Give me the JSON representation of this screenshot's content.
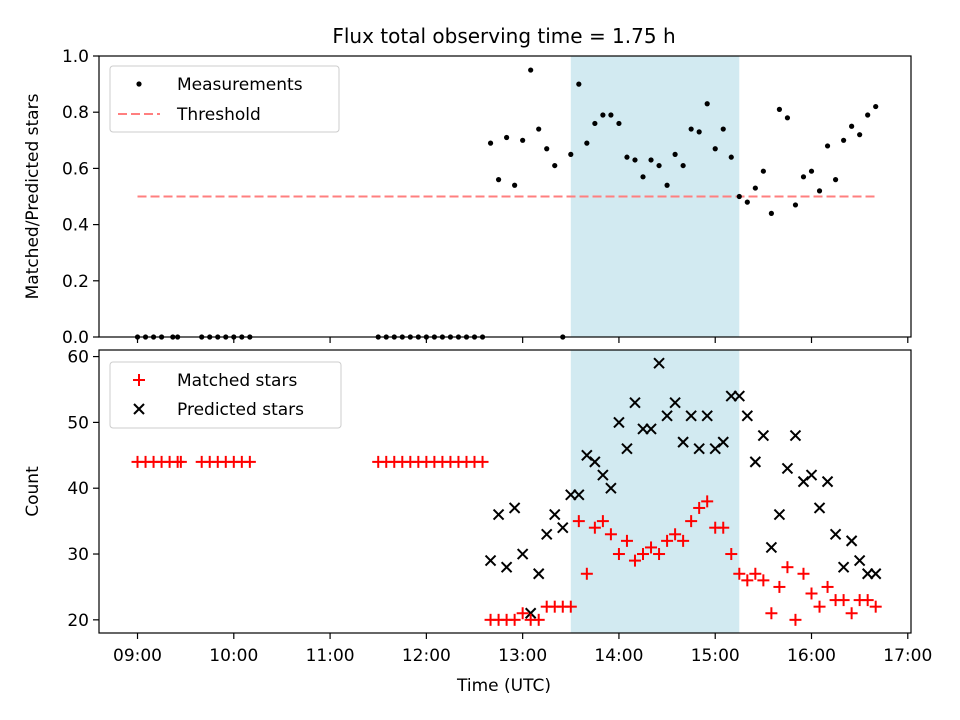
{
  "title": "Flux total observing time = 1.75 h",
  "colors": {
    "shade": "#add8e6",
    "threshold": "#ff7f7f",
    "matched": "#ff0000",
    "predicted": "#000000",
    "measurement": "#000000"
  },
  "chart_data": [
    {
      "type": "scatter",
      "ylabel": "Matched/Predicted stars",
      "xlim": [
        "08:36",
        "17:02"
      ],
      "ylim": [
        0,
        1
      ],
      "yticks": [
        "0.0",
        "0.2",
        "0.4",
        "0.6",
        "0.8",
        "1.0"
      ],
      "legend_position": "top-left",
      "shaded_interval": [
        "13:30",
        "15:15"
      ],
      "threshold": {
        "name": "Threshold",
        "value": 0.5,
        "x": [
          "09:00",
          "16:40"
        ]
      },
      "series": [
        {
          "name": "Measurements",
          "x": [
            "09:00",
            "09:05",
            "09:10",
            "09:15",
            "09:22",
            "09:25",
            "09:40",
            "09:45",
            "09:50",
            "09:55",
            "10:00",
            "10:05",
            "10:10",
            "11:30",
            "11:35",
            "11:40",
            "11:45",
            "11:50",
            "11:55",
            "12:00",
            "12:05",
            "12:10",
            "12:15",
            "12:20",
            "12:25",
            "12:30",
            "12:35",
            "12:40",
            "12:45",
            "12:50",
            "12:55",
            "13:00",
            "13:05",
            "13:10",
            "13:15",
            "13:20",
            "13:25",
            "13:30",
            "13:35",
            "13:40",
            "13:45",
            "13:50",
            "13:55",
            "14:00",
            "14:05",
            "14:10",
            "14:15",
            "14:20",
            "14:25",
            "14:30",
            "14:35",
            "14:40",
            "14:45",
            "14:50",
            "14:55",
            "15:00",
            "15:05",
            "15:10",
            "15:15",
            "15:20",
            "15:25",
            "15:30",
            "15:35",
            "15:40",
            "15:45",
            "15:50",
            "15:55",
            "16:00",
            "16:05",
            "16:10",
            "16:15",
            "16:20",
            "16:25",
            "16:30",
            "16:35",
            "16:40"
          ],
          "y": [
            0,
            0,
            0,
            0,
            0,
            0,
            0,
            0,
            0,
            0,
            0,
            0,
            0,
            0,
            0,
            0,
            0,
            0,
            0,
            0,
            0,
            0,
            0,
            0,
            0,
            0,
            0,
            0.69,
            0.56,
            0.71,
            0.54,
            0.7,
            0.95,
            0.74,
            0.67,
            0.61,
            0,
            0.65,
            0.9,
            0.69,
            0.76,
            0.79,
            0.79,
            0.76,
            0.64,
            0.63,
            0.57,
            0.63,
            0.61,
            0.54,
            0.65,
            0.61,
            0.74,
            0.73,
            0.83,
            0.67,
            0.74,
            0.64,
            0.5,
            0.48,
            0.53,
            0.59,
            0.44,
            0.81,
            0.78,
            0.47,
            0.57,
            0.59,
            0.52,
            0.68,
            0.56,
            0.7,
            0.75,
            0.72,
            0.79,
            0.82
          ]
        }
      ]
    },
    {
      "type": "scatter",
      "xlabel": "Time (UTC)",
      "ylabel": "Count",
      "xlim": [
        "08:36",
        "17:02"
      ],
      "ylim": [
        18,
        61
      ],
      "yticks": [
        "20",
        "30",
        "40",
        "50",
        "60"
      ],
      "xticks": [
        "09:00",
        "10:00",
        "11:00",
        "12:00",
        "13:00",
        "14:00",
        "15:00",
        "16:00",
        "17:00"
      ],
      "legend_position": "top-left",
      "shaded_interval": [
        "13:30",
        "15:15"
      ],
      "series": [
        {
          "name": "Matched stars",
          "marker": "+",
          "x": [
            "09:00",
            "09:05",
            "09:10",
            "09:15",
            "09:20",
            "09:25",
            "09:27",
            "09:40",
            "09:45",
            "09:50",
            "09:55",
            "10:00",
            "10:05",
            "10:10",
            "11:30",
            "11:35",
            "11:40",
            "11:45",
            "11:50",
            "11:55",
            "12:00",
            "12:05",
            "12:10",
            "12:15",
            "12:20",
            "12:25",
            "12:30",
            "12:35",
            "12:40",
            "12:45",
            "12:50",
            "12:55",
            "13:00",
            "13:05",
            "13:10",
            "13:15",
            "13:20",
            "13:25",
            "13:30",
            "13:35",
            "13:40",
            "13:45",
            "13:50",
            "13:55",
            "14:00",
            "14:05",
            "14:10",
            "14:15",
            "14:20",
            "14:25",
            "14:30",
            "14:35",
            "14:40",
            "14:45",
            "14:50",
            "14:55",
            "15:00",
            "15:05",
            "15:10",
            "15:15",
            "15:20",
            "15:25",
            "15:30",
            "15:35",
            "15:40",
            "15:45",
            "15:50",
            "15:55",
            "16:00",
            "16:05",
            "16:10",
            "16:15",
            "16:20",
            "16:25",
            "16:30",
            "16:35",
            "16:40"
          ],
          "y": [
            44,
            44,
            44,
            44,
            44,
            44,
            44,
            44,
            44,
            44,
            44,
            44,
            44,
            44,
            44,
            44,
            44,
            44,
            44,
            44,
            44,
            44,
            44,
            44,
            44,
            44,
            44,
            44,
            20,
            20,
            20,
            20,
            21,
            20,
            20,
            22,
            22,
            22,
            22,
            35,
            27,
            34,
            35,
            33,
            30,
            32,
            29,
            30,
            31,
            30,
            32,
            33,
            32,
            35,
            37,
            38,
            34,
            34,
            30,
            27,
            26,
            27,
            26,
            21,
            25,
            28,
            20,
            27,
            24,
            22,
            25,
            23,
            23,
            21,
            23,
            23,
            22
          ]
        },
        {
          "name": "Predicted stars",
          "marker": "x",
          "x": [
            "12:40",
            "12:45",
            "12:50",
            "12:55",
            "13:00",
            "13:05",
            "13:10",
            "13:15",
            "13:20",
            "13:25",
            "13:30",
            "13:35",
            "13:40",
            "13:45",
            "13:50",
            "13:55",
            "14:00",
            "14:05",
            "14:10",
            "14:15",
            "14:20",
            "14:25",
            "14:30",
            "14:35",
            "14:40",
            "14:45",
            "14:50",
            "14:55",
            "15:00",
            "15:05",
            "15:10",
            "15:15",
            "15:20",
            "15:25",
            "15:30",
            "15:35",
            "15:40",
            "15:45",
            "15:50",
            "15:55",
            "16:00",
            "16:05",
            "16:10",
            "16:15",
            "16:20",
            "16:25",
            "16:30",
            "16:35",
            "16:40"
          ],
          "y": [
            29,
            36,
            28,
            37,
            30,
            21,
            27,
            33,
            36,
            34,
            39,
            39,
            45,
            44,
            42,
            40,
            50,
            46,
            53,
            49,
            49,
            59,
            51,
            53,
            47,
            51,
            46,
            51,
            46,
            47,
            54,
            54,
            51,
            44,
            48,
            31,
            36,
            43,
            48,
            41,
            42,
            37,
            41,
            33,
            28,
            32,
            29,
            27,
            27
          ]
        }
      ]
    }
  ]
}
